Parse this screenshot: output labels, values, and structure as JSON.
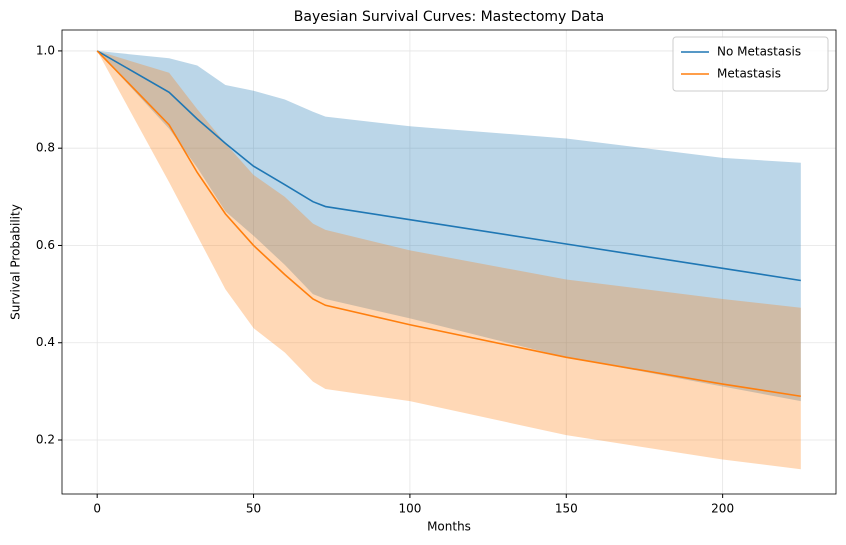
{
  "chart_data": {
    "type": "line",
    "title": "Bayesian Survival Curves: Mastectomy Data",
    "x_label": "Months",
    "y_label": "Survival Probability",
    "x": [
      0,
      23,
      32,
      41,
      50,
      60,
      69,
      73,
      100,
      150,
      200,
      225
    ],
    "series": [
      {
        "name": "No Metastasis",
        "color": "#1f77b4",
        "values": [
          1.0,
          0.915,
          0.86,
          0.81,
          0.763,
          0.725,
          0.69,
          0.68,
          0.653,
          0.603,
          0.553,
          0.528
        ],
        "lower": [
          1.0,
          0.84,
          0.76,
          0.67,
          0.62,
          0.56,
          0.5,
          0.49,
          0.45,
          0.37,
          0.31,
          0.28
        ],
        "upper": [
          1.0,
          0.985,
          0.97,
          0.93,
          0.918,
          0.9,
          0.875,
          0.865,
          0.845,
          0.82,
          0.78,
          0.77
        ]
      },
      {
        "name": "Metastasis",
        "color": "#ff7f0e",
        "values": [
          1.0,
          0.848,
          0.75,
          0.665,
          0.6,
          0.54,
          0.49,
          0.477,
          0.437,
          0.37,
          0.315,
          0.29
        ],
        "lower": [
          1.0,
          0.73,
          0.62,
          0.51,
          0.43,
          0.38,
          0.32,
          0.305,
          0.28,
          0.21,
          0.16,
          0.14
        ],
        "upper": [
          1.0,
          0.955,
          0.88,
          0.81,
          0.745,
          0.7,
          0.645,
          0.632,
          0.59,
          0.53,
          0.49,
          0.472
        ]
      }
    ],
    "xlim": [
      -11.25,
      236.25
    ],
    "ylim": [
      0.089,
      1.043
    ],
    "xticks": [
      0,
      50,
      100,
      150,
      200
    ],
    "yticks": [
      0.2,
      0.4,
      0.6,
      0.8,
      {
        "value": 1.0,
        "label": "1.0"
      }
    ],
    "grid": true,
    "band_opacity": 0.3,
    "legend": "upper right"
  }
}
